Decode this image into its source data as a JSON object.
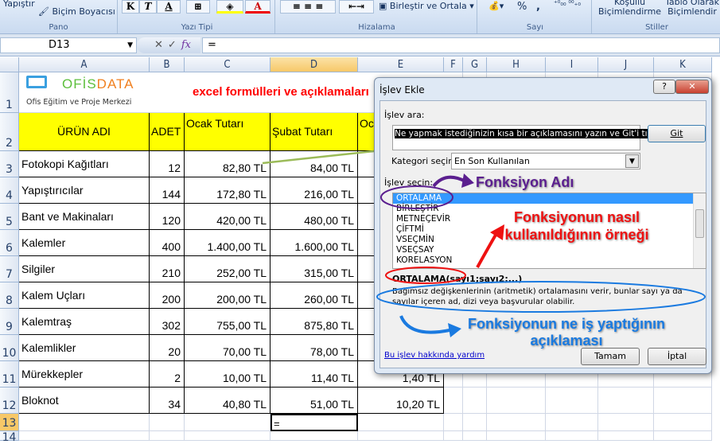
{
  "ribbon": {
    "paste": "Yapıştır",
    "format_painter": "Biçim Boyacısı",
    "groups": [
      "Pano",
      "Yazı Tipi",
      "Hizalama",
      "Sayı",
      "Stiller"
    ],
    "bold": "K",
    "italic": "T",
    "underline": "A",
    "merge": "Birleştir ve Ortala",
    "percent": "%",
    "comma": ",",
    "cond_format": [
      "Koşullu",
      "Biçimlendirme"
    ],
    "table_format": [
      "Tablo Olarak",
      "Biçimlendir"
    ]
  },
  "formula_bar": {
    "name_box": "D13",
    "cancel": "✕",
    "enter": "✓",
    "fx": "fx",
    "value": "="
  },
  "columns": [
    "A",
    "B",
    "C",
    "D",
    "E",
    "F",
    "G",
    "H",
    "I",
    "J",
    "K"
  ],
  "rows": [
    "1",
    "2",
    "3",
    "4",
    "5",
    "6",
    "7",
    "8",
    "9",
    "10",
    "11",
    "12",
    "13",
    "14"
  ],
  "sheet": {
    "logo": {
      "brand_1": "OFİS",
      "brand_2": "DATA",
      "tagline": "Ofis Eğitim ve Proje Merkezi"
    },
    "title": "excel formülleri ve açıklamaları",
    "headers": [
      "ÜRÜN ADI",
      "ADET",
      "Ocak Tutarı",
      "Şubat Tutarı",
      "Ocak Farkı"
    ],
    "data": [
      [
        "Fotokopi Kağıtları",
        "12",
        "82,80 TL",
        "84,00 TL",
        ""
      ],
      [
        "Yapıştırıcılar",
        "144",
        "172,80 TL",
        "216,00 TL",
        ""
      ],
      [
        "Bant ve Makinaları",
        "120",
        "420,00 TL",
        "480,00 TL",
        ""
      ],
      [
        "Kalemler",
        "400",
        "1.400,00 TL",
        "1.600,00 TL",
        ""
      ],
      [
        "Silgiler",
        "210",
        "252,00 TL",
        "315,00 TL",
        ""
      ],
      [
        "Kalem Uçları",
        "200",
        "200,00 TL",
        "260,00 TL",
        ""
      ],
      [
        "Kalemtraş",
        "302",
        "755,00 TL",
        "875,80 TL",
        ""
      ],
      [
        "Kalemlikler",
        "20",
        "70,00 TL",
        "78,00 TL",
        ""
      ],
      [
        "Mürekkepler",
        "2",
        "10,00 TL",
        "11,40 TL",
        "1,40 TL"
      ],
      [
        "Bloknot",
        "34",
        "40,80 TL",
        "51,00 TL",
        "10,20 TL"
      ]
    ],
    "active_cell_value": "="
  },
  "dialog": {
    "title": "İşlev Ekle",
    "help": "?",
    "close": "✕",
    "search_label": "İşlev ara:",
    "search_value": "Ne yapmak istediğinizin kısa bir açıklamasını yazın ve Git'i tıklatın",
    "go": "Git",
    "category_label": "Kategori seçin:",
    "category_value": "En Son Kullanılan",
    "function_label": "İşlev seçin:",
    "functions": [
      "ORTALAMA",
      "BİRLEŞTİR",
      "METNEÇEVİR",
      "ÇİFTMİ",
      "VSEÇMİN",
      "VSEÇSAY",
      "KORELASYON"
    ],
    "selected_function": "ORTALAMA",
    "syntax": "ORTALAMA(sayı1;sayı2;...)",
    "description": "Bağımsız değişkenlerinin (aritmetik) ortalamasını verir, bunlar sayı ya da sayılar içeren ad, dizi veya başvurular olabilir.",
    "help_link": "Bu işlev hakkında yardım",
    "ok": "Tamam",
    "cancel": "İptal"
  },
  "annotations": {
    "name": "Fonksiyon Adı",
    "usage": "Fonksiyonun nasıl kullanıldığının örneği",
    "purpose": "Fonksiyonun ne iş yaptığının açıklaması"
  },
  "colors": {
    "header_yellow": "#ffff00",
    "title_red": "#ff0000",
    "selection_blue": "#3399ff",
    "annotation_purple": "#5b1f8f",
    "annotation_red": "#ee1111",
    "annotation_blue": "#1a7ae0"
  }
}
